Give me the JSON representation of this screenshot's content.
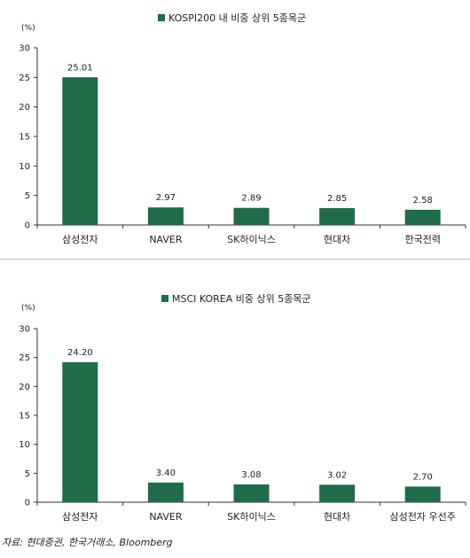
{
  "chart_data": [
    {
      "type": "bar",
      "title": "KOSPI200 내 비중 상위 5종목군",
      "unit_label": "(%)",
      "categories": [
        "삼성전자",
        "NAVER",
        "SK하이닉스",
        "현대차",
        "한국전력"
      ],
      "values": [
        25.01,
        2.97,
        2.89,
        2.85,
        2.58
      ],
      "value_labels": [
        "25.01",
        "2.97",
        "2.89",
        "2.85",
        "2.58"
      ],
      "yticks": [
        "0",
        "5",
        "10",
        "15",
        "20",
        "25",
        "30"
      ],
      "ylim": [
        0,
        30
      ],
      "legend": "top-center",
      "grid": false,
      "bar_color": "#1f6b4a"
    },
    {
      "type": "bar",
      "title": "MSCI KOREA 비중 상위 5종목군",
      "unit_label": "(%)",
      "categories": [
        "삼성전자",
        "NAVER",
        "SK하이닉스",
        "현대차",
        "삼성전자 우선주"
      ],
      "values": [
        24.2,
        3.4,
        3.08,
        3.02,
        2.7
      ],
      "value_labels": [
        "24.20",
        "3.40",
        "3.08",
        "3.02",
        "2.70"
      ],
      "yticks": [
        "0",
        "5",
        "10",
        "15",
        "20",
        "25",
        "30"
      ],
      "ylim": [
        0,
        30
      ],
      "legend": "top-center",
      "grid": false,
      "bar_color": "#1f6b4a"
    }
  ],
  "source": "자료: 현대증권, 한국거래소, Bloomberg"
}
